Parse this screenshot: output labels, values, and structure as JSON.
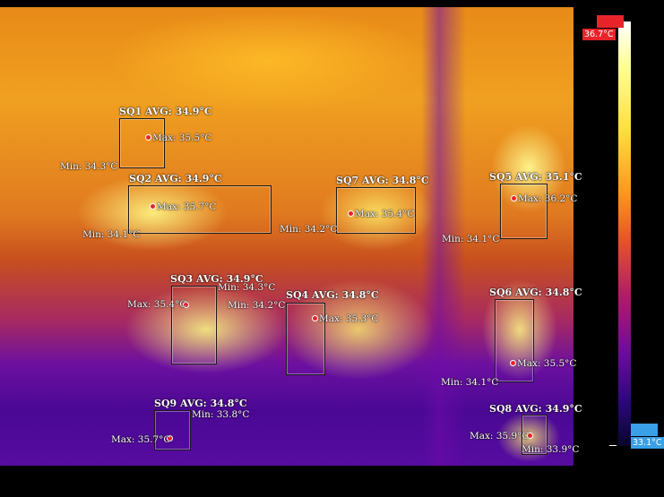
{
  "scale": {
    "max_label": "36.7°C",
    "min_label": "33.1°C"
  },
  "regions": [
    {
      "title": "SQ1 AVG: 34.9°C",
      "max": "Max: 35.5°C",
      "min": "Min: 34.3°C"
    },
    {
      "title": "SQ2 AVG: 34.9°C",
      "max": "Max: 35.7°C",
      "min": "Min: 34.1°C"
    },
    {
      "title": "SQ7 AVG: 34.8°C",
      "max": "Max: 35.4°C",
      "min": "Min: 34.2°C"
    },
    {
      "title": "SQ5 AVG: 35.1°C",
      "max": "Max: 36.2°C",
      "min": "Min: 34.1°C"
    },
    {
      "title": "SQ3 AVG: 34.9°C",
      "max": "Max: 35.4°C",
      "min": "Min: 34.3°C"
    },
    {
      "title": "SQ4 AVG: 34.8°C",
      "max": "Max: 35.3°C",
      "min": "Min: 34.2°C"
    },
    {
      "title": "SQ6 AVG: 34.8°C",
      "max": "Max: 35.5°C",
      "min": "Min: 34.1°C"
    },
    {
      "title": "SQ9 AVG: 34.8°C",
      "max": "Max: 35.7°C",
      "min": "Min: 33.8°C"
    },
    {
      "title": "SQ8 AVG: 34.9°C",
      "max": "Max: 35.9°C",
      "min": "Min: 33.9°C"
    }
  ]
}
